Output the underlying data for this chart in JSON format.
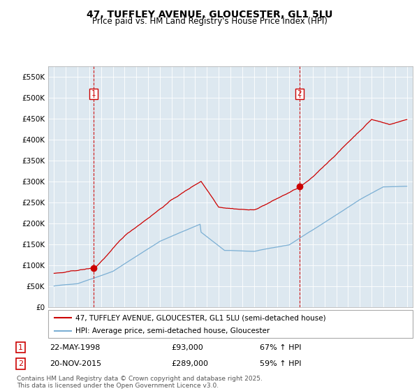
{
  "title": "47, TUFFLEY AVENUE, GLOUCESTER, GL1 5LU",
  "subtitle": "Price paid vs. HM Land Registry's House Price Index (HPI)",
  "legend_line1": "47, TUFFLEY AVENUE, GLOUCESTER, GL1 5LU (semi-detached house)",
  "legend_line2": "HPI: Average price, semi-detached house, Gloucester",
  "sale1_date": "22-MAY-1998",
  "sale1_price": "£93,000",
  "sale1_hpi": "67% ↑ HPI",
  "sale1_year": 1998.38,
  "sale1_value": 93000,
  "sale2_date": "20-NOV-2015",
  "sale2_price": "£289,000",
  "sale2_hpi": "59% ↑ HPI",
  "sale2_year": 2015.88,
  "sale2_value": 289000,
  "footer": "Contains HM Land Registry data © Crown copyright and database right 2025.\nThis data is licensed under the Open Government Licence v3.0.",
  "ylim": [
    0,
    575000
  ],
  "yticks": [
    0,
    50000,
    100000,
    150000,
    200000,
    250000,
    300000,
    350000,
    400000,
    450000,
    500000,
    550000
  ],
  "ytick_labels": [
    "£0",
    "£50K",
    "£100K",
    "£150K",
    "£200K",
    "£250K",
    "£300K",
    "£350K",
    "£400K",
    "£450K",
    "£500K",
    "£550K"
  ],
  "xlim": [
    1994.5,
    2025.5
  ],
  "red_color": "#cc0000",
  "blue_color": "#7bafd4",
  "dashed_color": "#cc0000",
  "plot_bg_color": "#dde8f0",
  "background_color": "#ffffff",
  "grid_color": "#ffffff"
}
